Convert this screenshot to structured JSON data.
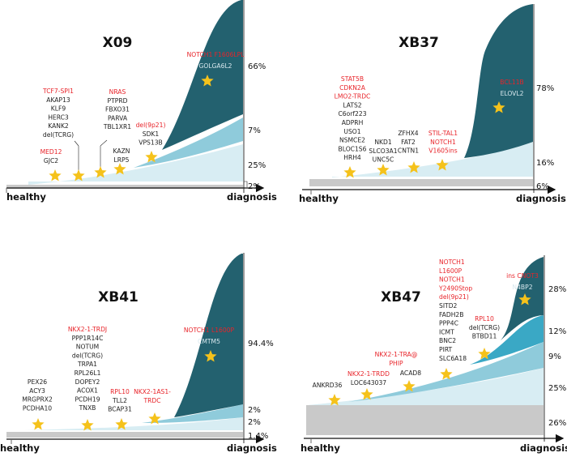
{
  "colors": {
    "dark": "#23616f",
    "medium": "#3aa8c5",
    "mid": "#8fcbdb",
    "light": "#d8edf3",
    "normal": "#c9c9c9",
    "driver": "#e8242a",
    "star": "#f5c21b"
  },
  "axis": {
    "start_label": "healthy",
    "end_label": "diagnosis"
  },
  "panels": [
    {
      "title": "X09",
      "percentages": [
        "66%",
        "7%",
        "25%",
        "2%"
      ],
      "groups": [
        [
          {
            "t": "MED12",
            "red": true
          },
          {
            "t": "GJC2"
          }
        ],
        [
          {
            "t": "TCF7-SPI1",
            "red": true
          },
          {
            "t": "AKAP13"
          },
          {
            "t": "KLF9"
          },
          {
            "t": "HERC3"
          },
          {
            "t": "KANK2"
          },
          {
            "t": "del(TCRG)"
          }
        ],
        [
          {
            "t": "NRAS",
            "red": true
          },
          {
            "t": "PTPRD"
          },
          {
            "t": "FBXO31"
          },
          {
            "t": "PARVA"
          },
          {
            "t": "TBL1XR1"
          }
        ],
        [
          {
            "t": "KAZN"
          },
          {
            "t": "LRP5"
          }
        ],
        [
          {
            "t": "del(9p21)",
            "red": true
          },
          {
            "t": "SDK1"
          },
          {
            "t": "VPS13B"
          }
        ],
        [
          {
            "t": "NOTCH1 F1606LPL",
            "red": true
          },
          {
            "t": "GOLGA6L2"
          }
        ]
      ]
    },
    {
      "title": "XB37",
      "percentages": [
        "78%",
        "16%",
        "6%"
      ],
      "groups": [
        [
          {
            "t": "STAT5B",
            "red": true
          },
          {
            "t": "CDKN2A",
            "red": true
          },
          {
            "t": "LMO2-TRDC",
            "red": true
          },
          {
            "t": "LATS2"
          },
          {
            "t": "C6orf223"
          },
          {
            "t": "ADPRH"
          },
          {
            "t": "USO1"
          },
          {
            "t": "NSMCE2"
          },
          {
            "t": "BLOC1S6"
          },
          {
            "t": "HRH4"
          }
        ],
        [
          {
            "t": "NKD1"
          },
          {
            "t": "SLCO3A1"
          },
          {
            "t": "UNC5C"
          }
        ],
        [
          {
            "t": "ZFHX4"
          },
          {
            "t": "FAT2"
          },
          {
            "t": "CNTN1"
          }
        ],
        [
          {
            "t": "STIL-TAL1",
            "red": true
          },
          {
            "t": "NOTCH1",
            "red": true
          },
          {
            "t": "V1605ins",
            "red": true
          }
        ],
        [
          {
            "t": "BCL11B",
            "red": true
          },
          {
            "t": "ELOVL2"
          }
        ]
      ]
    },
    {
      "title": "XB41",
      "percentages": [
        "94.4%",
        "2%",
        "2%",
        "1.4%"
      ],
      "groups": [
        [
          {
            "t": "PEX26"
          },
          {
            "t": "ACY3"
          },
          {
            "t": "MRGPRX2"
          },
          {
            "t": "PCDHA10"
          }
        ],
        [
          {
            "t": "NKX2-1-TRDJ",
            "red": true
          },
          {
            "t": "PPP1R14C"
          },
          {
            "t": "NOTUM"
          },
          {
            "t": "del(TCRG)"
          },
          {
            "t": "TRPA1"
          },
          {
            "t": "RPL26L1"
          },
          {
            "t": "DOPEY2"
          },
          {
            "t": "ACOX1"
          },
          {
            "t": "PCDH19"
          },
          {
            "t": "TNXB"
          }
        ],
        [
          {
            "t": "RPL10",
            "red": true
          },
          {
            "t": "TLL2"
          },
          {
            "t": "BCAP31"
          }
        ],
        [
          {
            "t": "NKX2-1AS1-",
            "red": true
          },
          {
            "t": "TRDC",
            "red": true
          }
        ],
        [
          {
            "t": "NOTCH1 L1600P",
            "red": true
          },
          {
            "t": "CMTM5"
          }
        ]
      ]
    },
    {
      "title": "XB47",
      "percentages": [
        "28%",
        "12%",
        "9%",
        "25%",
        "26%"
      ],
      "groups": [
        [
          {
            "t": "ANKRD36"
          }
        ],
        [
          {
            "t": "NKX2-1-TRDD",
            "red": true
          },
          {
            "t": "LOC643037"
          }
        ],
        [
          {
            "t": "NKX2-1-TRA@",
            "red": true
          },
          {
            "t": "PHIP",
            "red": true
          }
        ],
        [
          {
            "t": "ACAD8"
          }
        ],
        [
          {
            "t": "NOTCH1",
            "red": true
          },
          {
            "t": "L1600P",
            "red": true
          },
          {
            "t": "NOTCH1",
            "red": true
          },
          {
            "t": "Y2490Stop",
            "red": true
          },
          {
            "t": "del(9p21)",
            "red": true
          },
          {
            "t": "SITD2"
          },
          {
            "t": "FADH2B"
          },
          {
            "t": "PPP4C"
          },
          {
            "t": "ICMT"
          },
          {
            "t": "BNC2"
          },
          {
            "t": "PIRT"
          },
          {
            "t": "SLC6A18"
          }
        ],
        [
          {
            "t": "RPL10",
            "red": true
          },
          {
            "t": "del(TCRG)"
          },
          {
            "t": "BTBD11"
          }
        ],
        [
          {
            "t": "ins CNOT3",
            "red": true
          },
          {
            "t": "N4BP2"
          }
        ]
      ]
    }
  ]
}
